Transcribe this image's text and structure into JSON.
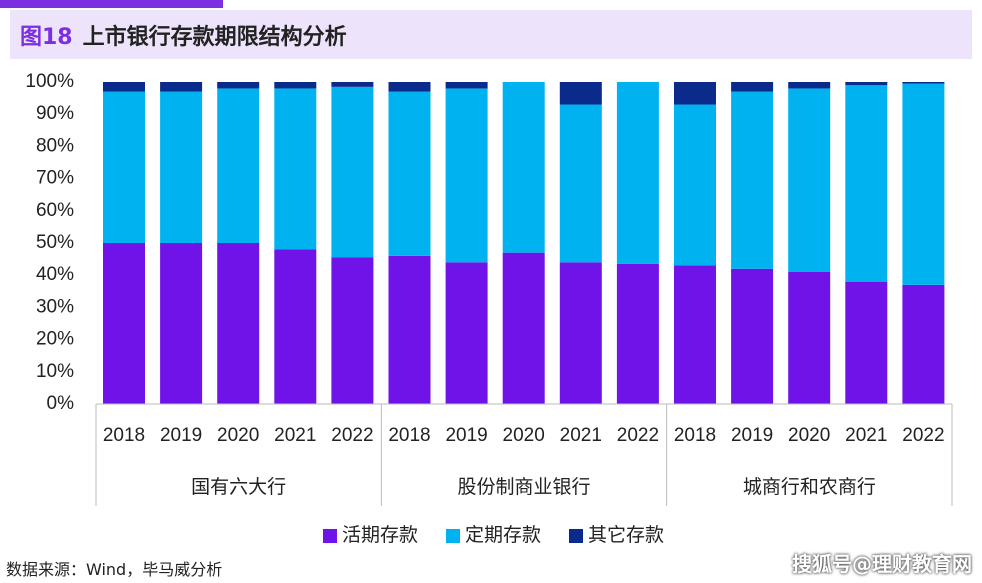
{
  "header": {
    "figure_no": "图18",
    "title": "上市银行存款期限结构分析"
  },
  "source_text": "数据来源：Wind，毕马威分析",
  "watermark": "搜狐号@理财教育网",
  "chart_data": {
    "type": "bar",
    "stacked": true,
    "title": "上市银行存款期限结构分析",
    "groups": [
      {
        "label": "国有六大行",
        "years": [
          "2018",
          "2019",
          "2020",
          "2021",
          "2022"
        ]
      },
      {
        "label": "股份制商业银行",
        "years": [
          "2018",
          "2019",
          "2020",
          "2021",
          "2022"
        ]
      },
      {
        "label": "城商行和农商行",
        "years": [
          "2018",
          "2019",
          "2020",
          "2021",
          "2022"
        ]
      }
    ],
    "series": [
      {
        "name": "活期存款",
        "color": "#7013e8",
        "values": [
          50,
          50,
          50,
          48,
          45.5,
          46,
          44,
          47,
          44,
          43.5,
          43,
          42,
          41,
          38,
          37
        ]
      },
      {
        "name": "定期存款",
        "color": "#00b3f0",
        "values": [
          47,
          47,
          48,
          50,
          53,
          51,
          54,
          53,
          49,
          56.5,
          50,
          55,
          57,
          61,
          62.5
        ]
      },
      {
        "name": "其它存款",
        "color": "#0a2a8c",
        "values": [
          3,
          3,
          2,
          2,
          1.5,
          3,
          2,
          0,
          7,
          0,
          7,
          3,
          2,
          1,
          0.5
        ]
      }
    ],
    "yticks": [
      "0%",
      "10%",
      "20%",
      "30%",
      "40%",
      "50%",
      "60%",
      "70%",
      "80%",
      "90%",
      "100%"
    ],
    "ylim": [
      0,
      100
    ],
    "legend_position": "bottom"
  }
}
